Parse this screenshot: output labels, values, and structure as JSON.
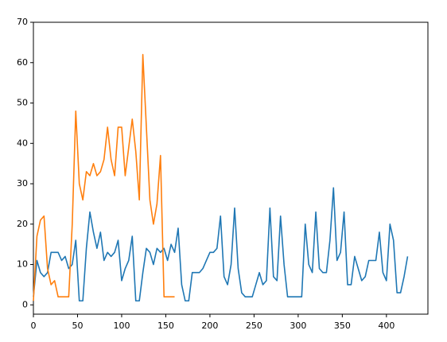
{
  "chart_data": {
    "type": "line",
    "x": [
      0,
      4,
      8,
      12,
      16,
      20,
      24,
      28,
      32,
      36,
      40,
      44,
      48,
      52,
      56,
      60,
      64,
      68,
      72,
      76,
      80,
      84,
      88,
      92,
      96,
      100,
      104,
      108,
      112,
      116,
      120,
      124,
      128,
      132,
      136,
      140,
      144,
      148,
      152,
      156,
      160,
      164,
      168,
      172,
      176,
      180,
      184,
      188,
      192,
      196,
      200,
      204,
      208,
      212,
      216,
      220,
      224,
      228,
      232,
      236,
      240,
      244,
      248,
      252,
      256,
      260,
      264,
      268,
      272,
      276,
      280,
      284,
      288,
      292,
      296,
      300,
      304,
      308,
      312,
      316,
      320,
      324,
      328,
      332,
      336,
      340,
      344,
      348,
      352,
      356,
      360,
      364,
      368,
      372,
      376,
      380,
      384,
      388,
      392,
      396,
      400,
      404,
      408,
      412,
      416,
      420,
      424
    ],
    "series": [
      {
        "color": "#1f77b4",
        "values": [
          2,
          11,
          8,
          7,
          8,
          13,
          13,
          13,
          11,
          12,
          9,
          10,
          16,
          1,
          1,
          14,
          23,
          18,
          14,
          18,
          11,
          13,
          12,
          13,
          16,
          6,
          9,
          11,
          17,
          1,
          1,
          8,
          14,
          13,
          10,
          14,
          13,
          14,
          11,
          15,
          13,
          19,
          5,
          1,
          1,
          8,
          8,
          8,
          9,
          11,
          13,
          13,
          14,
          22,
          7,
          5,
          10,
          24,
          9,
          3,
          2,
          2,
          2,
          5,
          8,
          5,
          6,
          24,
          7,
          6,
          22,
          10,
          2,
          2,
          2,
          2,
          2,
          20,
          10,
          8,
          23,
          9,
          8,
          8,
          16,
          29,
          11,
          13,
          23,
          5,
          5,
          12,
          9,
          6,
          7,
          11,
          11,
          11,
          18,
          8,
          6,
          20,
          16,
          3,
          3,
          7,
          12
        ]
      },
      {
        "color": "#ff7f0e",
        "values": [
          1,
          17,
          21,
          22,
          9,
          5,
          6,
          2,
          2,
          2,
          2,
          20,
          48,
          30,
          26,
          33,
          32,
          35,
          32,
          33,
          36,
          44,
          36,
          32,
          44,
          44,
          32,
          39,
          46,
          38,
          26,
          62,
          44,
          26,
          20,
          25,
          37,
          2,
          2,
          2,
          2,
          null,
          null,
          null,
          null,
          null,
          null,
          null,
          null,
          null,
          null,
          null,
          null,
          null,
          null,
          null,
          null,
          null,
          null,
          null,
          null,
          null,
          null,
          null,
          null,
          null,
          null,
          null,
          null,
          null,
          null,
          null,
          null,
          null,
          null,
          null,
          null,
          null,
          null,
          null,
          null,
          null,
          null,
          null,
          null,
          null,
          null,
          null,
          null,
          null,
          null,
          null,
          null,
          null,
          null,
          null,
          null,
          null,
          null,
          null,
          null,
          null,
          null,
          null,
          null,
          null,
          null
        ]
      }
    ],
    "xlim": [
      0,
      447
    ],
    "ylim": [
      -2.3,
      70
    ],
    "xticks": [
      0,
      50,
      100,
      150,
      200,
      250,
      300,
      350,
      400
    ],
    "yticks": [
      0,
      10,
      20,
      30,
      40,
      50,
      60,
      70
    ]
  }
}
